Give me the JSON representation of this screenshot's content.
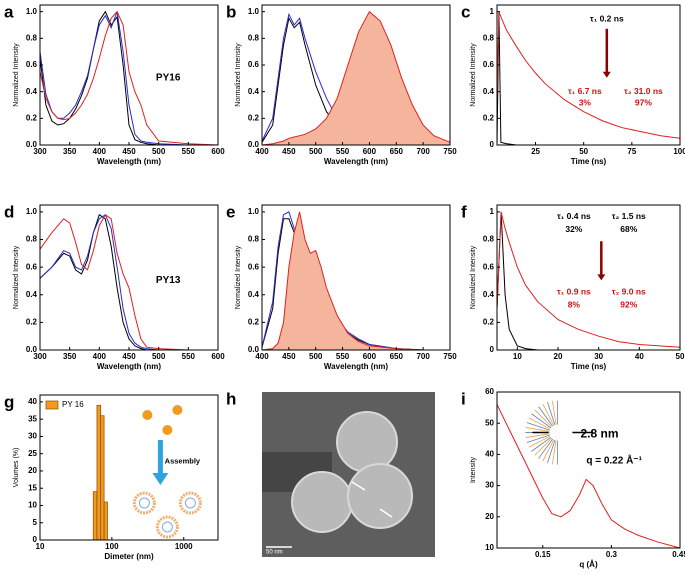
{
  "chart_data": [
    {
      "panel": "a",
      "type": "line",
      "xlabel": "Wavelength (nm)",
      "ylabel": "Normalized Intensity",
      "x": [
        300,
        310,
        320,
        330,
        340,
        350,
        360,
        370,
        380,
        390,
        400,
        410,
        420,
        430,
        440,
        450,
        460,
        470,
        480,
        500,
        550,
        600
      ],
      "series": [
        {
          "color": "#000000",
          "values": [
            0.65,
            0.3,
            0.18,
            0.15,
            0.16,
            0.2,
            0.27,
            0.37,
            0.5,
            0.72,
            0.93,
            1.0,
            0.9,
            0.96,
            0.6,
            0.15,
            0.04,
            0.02,
            0.01,
            0,
            0,
            0
          ]
        },
        {
          "color": "#2a2ad0",
          "values": [
            0.7,
            0.38,
            0.25,
            0.2,
            0.2,
            0.24,
            0.3,
            0.4,
            0.52,
            0.72,
            0.9,
            0.97,
            0.88,
            1.0,
            0.7,
            0.3,
            0.08,
            0.03,
            0.02,
            0.01,
            0,
            0
          ]
        },
        {
          "color": "#e02020",
          "values": [
            0.55,
            0.35,
            0.25,
            0.2,
            0.19,
            0.2,
            0.24,
            0.3,
            0.38,
            0.5,
            0.65,
            0.82,
            0.95,
            1.0,
            0.9,
            0.55,
            0.4,
            0.3,
            0.15,
            0.03,
            0.01,
            0
          ]
        }
      ],
      "xlim": [
        300,
        600
      ],
      "xticks": [
        300,
        350,
        400,
        450,
        500,
        550,
        600
      ],
      "ylim": [
        0,
        1.05
      ],
      "yticks": [
        {
          "value": 0,
          "label": "0.0"
        },
        0.2,
        0.4,
        0.6,
        0.8,
        {
          "value": 1,
          "label": "1.0"
        }
      ],
      "annotations": [
        {
          "text": "PY16",
          "color": "#000000"
        }
      ]
    },
    {
      "panel": "b",
      "type": "line",
      "xlabel": "Wavelength (nm)",
      "ylabel": "Normalized Intensity",
      "x": [
        400,
        420,
        440,
        450,
        460,
        470,
        480,
        500,
        520,
        540,
        560,
        580,
        600,
        620,
        640,
        660,
        680,
        700,
        720,
        750
      ],
      "series": [
        {
          "color": "#000000",
          "values": [
            0.02,
            0.15,
            0.75,
            0.95,
            0.88,
            0.92,
            0.75,
            0.45,
            0.25,
            0.14,
            0.08,
            0.04,
            0.02,
            0.01,
            0,
            0,
            0,
            0,
            0,
            0
          ]
        },
        {
          "color": "#2a2ad0",
          "values": [
            0.03,
            0.2,
            0.8,
            0.98,
            0.9,
            0.95,
            0.8,
            0.55,
            0.35,
            0.2,
            0.1,
            0.05,
            0.02,
            0.01,
            0,
            0,
            0,
            0,
            0,
            0
          ]
        },
        {
          "color": "#e02020",
          "fill": "#f5b59c",
          "values": [
            0,
            0.01,
            0.03,
            0.05,
            0.06,
            0.07,
            0.08,
            0.12,
            0.2,
            0.35,
            0.6,
            0.85,
            1.0,
            0.93,
            0.75,
            0.5,
            0.3,
            0.15,
            0.07,
            0.02
          ]
        }
      ],
      "xlim": [
        400,
        750
      ],
      "xticks": [
        400,
        450,
        500,
        550,
        600,
        650,
        700,
        750
      ],
      "ylim": [
        0,
        1.05
      ],
      "yticks": [
        {
          "value": 0,
          "label": "0.0"
        },
        0.2,
        0.4,
        0.6,
        0.8,
        {
          "value": 1,
          "label": "1.0"
        }
      ]
    },
    {
      "panel": "c",
      "type": "line",
      "xlabel": "Time (ns)",
      "ylabel": "Normalized Intensity",
      "x": [
        5,
        6,
        7,
        10,
        15,
        20,
        25,
        30,
        40,
        50,
        60,
        70,
        80,
        90,
        100
      ],
      "series": [
        {
          "color": "#000000",
          "values": [
            0,
            1,
            0.02,
            0.01,
            0,
            0,
            0,
            0,
            0,
            0,
            0,
            0,
            0,
            0,
            0
          ]
        },
        {
          "color": "#e02020",
          "values": [
            0.3,
            1,
            0.96,
            0.86,
            0.74,
            0.63,
            0.54,
            0.46,
            0.34,
            0.25,
            0.18,
            0.13,
            0.1,
            0.07,
            0.05
          ]
        }
      ],
      "xlim": [
        5,
        100
      ],
      "xticks": [
        25,
        50,
        75,
        100
      ],
      "ylim": [
        0,
        1.05
      ],
      "yticks": [
        0,
        0.2,
        0.4,
        0.6,
        0.8,
        1
      ],
      "annotations": [
        {
          "text": "τ₁ 0.2 ns",
          "color": "#000000"
        },
        {
          "text": "τ₁ 6.7 ns",
          "color": "#d01010"
        },
        {
          "text": "3%",
          "color": "#d01010"
        },
        {
          "text": "τ₂ 31.0 ns",
          "color": "#d01010"
        },
        {
          "text": "97%",
          "color": "#d01010"
        }
      ]
    },
    {
      "panel": "d",
      "type": "line",
      "xlabel": "Wavelength (nm)",
      "ylabel": "Normalized Intensity",
      "x": [
        300,
        320,
        340,
        350,
        360,
        370,
        380,
        390,
        400,
        410,
        420,
        430,
        440,
        450,
        460,
        470,
        480,
        500,
        550,
        600
      ],
      "series": [
        {
          "color": "#000000",
          "values": [
            0.52,
            0.6,
            0.7,
            0.68,
            0.58,
            0.55,
            0.65,
            0.85,
            0.98,
            0.95,
            0.75,
            0.45,
            0.2,
            0.08,
            0.03,
            0.01,
            0,
            0,
            0,
            0
          ]
        },
        {
          "color": "#2a2ad0",
          "values": [
            0.52,
            0.6,
            0.72,
            0.7,
            0.6,
            0.58,
            0.68,
            0.85,
            0.95,
            0.98,
            0.88,
            0.6,
            0.3,
            0.12,
            0.05,
            0.02,
            0.01,
            0,
            0,
            0
          ]
        },
        {
          "color": "#e02020",
          "values": [
            0.73,
            0.85,
            0.95,
            0.92,
            0.78,
            0.62,
            0.58,
            0.72,
            0.9,
            0.98,
            0.95,
            0.7,
            0.55,
            0.45,
            0.25,
            0.08,
            0.02,
            0.01,
            0,
            0
          ]
        }
      ],
      "xlim": [
        300,
        600
      ],
      "xticks": [
        300,
        350,
        400,
        450,
        500,
        550,
        600
      ],
      "ylim": [
        0,
        1.05
      ],
      "yticks": [
        {
          "value": 0,
          "label": "0.0"
        },
        0.2,
        0.4,
        0.6,
        0.8,
        {
          "value": 1,
          "label": "1.0"
        }
      ],
      "annotations": [
        {
          "text": "PY13",
          "color": "#000000"
        }
      ]
    },
    {
      "panel": "e",
      "type": "line",
      "xlabel": "Wavelength (nm)",
      "ylabel": "Normalized Intensity",
      "x": [
        400,
        420,
        430,
        440,
        450,
        460,
        470,
        480,
        490,
        500,
        510,
        520,
        540,
        560,
        580,
        600,
        650,
        700,
        750
      ],
      "series": [
        {
          "color": "#000000",
          "values": [
            0.02,
            0.3,
            0.7,
            0.95,
            0.95,
            0.85,
            0.78,
            0.65,
            0.55,
            0.45,
            0.38,
            0.3,
            0.2,
            0.12,
            0.07,
            0.04,
            0.01,
            0,
            0
          ]
        },
        {
          "color": "#2a2ad0",
          "values": [
            0.02,
            0.35,
            0.75,
            0.98,
            1.0,
            0.88,
            0.8,
            0.68,
            0.58,
            0.48,
            0.4,
            0.32,
            0.22,
            0.13,
            0.08,
            0.04,
            0.01,
            0,
            0
          ]
        },
        {
          "color": "#e02020",
          "fill": "#f5b59c",
          "values": [
            0,
            0.01,
            0.05,
            0.2,
            0.6,
            0.85,
            1.0,
            0.8,
            0.7,
            0.72,
            0.6,
            0.45,
            0.25,
            0.12,
            0.06,
            0.03,
            0.01,
            0,
            0
          ]
        }
      ],
      "xlim": [
        400,
        750
      ],
      "xticks": [
        400,
        450,
        500,
        550,
        600,
        650,
        700,
        750
      ],
      "ylim": [
        0,
        1.05
      ],
      "yticks": [
        {
          "value": 0,
          "label": "0.0"
        },
        0.2,
        0.4,
        0.6,
        0.8,
        {
          "value": 1,
          "label": "1.0"
        }
      ]
    },
    {
      "panel": "f",
      "type": "line",
      "xlabel": "Time (ns)",
      "ylabel": "Normalized Intensity",
      "x": [
        5,
        6,
        7,
        8,
        10,
        12,
        15,
        20,
        25,
        30,
        35,
        40,
        45,
        50
      ],
      "series": [
        {
          "color": "#000000",
          "values": [
            0.3,
            1,
            0.4,
            0.15,
            0.03,
            0.01,
            0,
            0,
            0,
            0,
            0,
            0,
            0,
            0
          ]
        },
        {
          "color": "#e02020",
          "values": [
            0.3,
            1,
            0.88,
            0.78,
            0.6,
            0.47,
            0.35,
            0.22,
            0.15,
            0.1,
            0.06,
            0.04,
            0.03,
            0.02
          ]
        }
      ],
      "xlim": [
        5,
        50
      ],
      "xticks": [
        10,
        20,
        30,
        40,
        50
      ],
      "ylim": [
        0,
        1.05
      ],
      "yticks": [
        0,
        0.2,
        0.4,
        0.6,
        0.8,
        1
      ],
      "annotations": [
        {
          "text": "τ₁ 0.4 ns",
          "color": "#000000"
        },
        {
          "text": "τ₂ 1.5 ns",
          "color": "#000000"
        },
        {
          "text": "32%",
          "color": "#000000"
        },
        {
          "text": "68%",
          "color": "#000000"
        },
        {
          "text": "τ₁ 0.9 ns",
          "color": "#d01010"
        },
        {
          "text": "τ₂ 9.0 ns",
          "color": "#d01010"
        },
        {
          "text": "8%",
          "color": "#d01010"
        },
        {
          "text": "92%",
          "color": "#d01010"
        }
      ]
    },
    {
      "panel": "g",
      "type": "histogram",
      "xlabel": "Dimeter (nm)",
      "ylabel": "Volumes (%)",
      "bins": [
        55,
        62,
        70,
        78,
        87
      ],
      "series": [
        {
          "name": "PY 16",
          "color": "#f29a1f",
          "values": [
            14,
            39,
            36,
            11
          ]
        }
      ],
      "xscale": "log",
      "xlim": [
        10,
        3000
      ],
      "xticks": [
        10,
        100,
        1000
      ],
      "ylim": [
        0,
        42
      ],
      "yticks": [
        0,
        5,
        10,
        15,
        20,
        25,
        30,
        35,
        40
      ],
      "annotations": [
        {
          "text": "Assembly",
          "color": "#000000"
        }
      ]
    },
    {
      "panel": "h",
      "type": "image",
      "scale_bar": "50 nm"
    },
    {
      "panel": "i",
      "type": "line",
      "xlabel": "q (Å)",
      "ylabel": "Intensity",
      "x": [
        0.05,
        0.07,
        0.09,
        0.11,
        0.13,
        0.15,
        0.17,
        0.19,
        0.21,
        0.23,
        0.245,
        0.26,
        0.28,
        0.3,
        0.33,
        0.36,
        0.4,
        0.45
      ],
      "series": [
        {
          "color": "#e02020",
          "values": [
            56,
            50,
            44,
            38,
            32,
            26,
            21,
            20,
            22,
            27,
            32,
            30,
            24,
            19,
            16,
            14,
            12,
            10
          ]
        }
      ],
      "xlim": [
        0.05,
        0.45
      ],
      "xticks": [
        0.15,
        0.3,
        0.45
      ],
      "ylim": [
        10,
        60
      ],
      "yticks": [
        10,
        20,
        30,
        40,
        50,
        60
      ],
      "annotations": [
        {
          "text": "2.8 nm",
          "color": "#000000"
        },
        {
          "text": "q = 0.22 Å⁻¹",
          "color": "#000000"
        }
      ]
    }
  ]
}
